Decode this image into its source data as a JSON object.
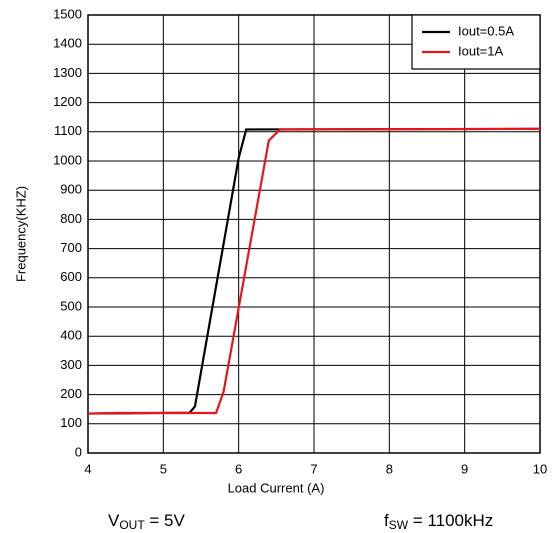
{
  "chart_data": {
    "type": "line",
    "xlabel": "Load Current (A)",
    "ylabel": "Frequency(KHZ)",
    "xlim": [
      4,
      10
    ],
    "xticks": [
      4,
      5,
      6,
      7,
      8,
      9,
      10
    ],
    "ylim": [
      0,
      1500
    ],
    "yticks": [
      0,
      100,
      200,
      300,
      400,
      500,
      600,
      700,
      800,
      900,
      1000,
      1100,
      1200,
      1300,
      1400,
      1500
    ],
    "grid": true,
    "legend": "upper right",
    "series": [
      {
        "name": "Iout=0.5A",
        "color": "#000000",
        "x": [
          4,
          5.35,
          5.42,
          6.0,
          6.1,
          10
        ],
        "values": [
          135,
          138,
          160,
          1010,
          1108,
          1110
        ]
      },
      {
        "name": "Iout=1A",
        "color": "#e8161b",
        "x": [
          4,
          4.4,
          5.7,
          5.8,
          6.4,
          6.55,
          10
        ],
        "values": [
          135,
          137,
          137,
          210,
          1070,
          1108,
          1110
        ]
      }
    ],
    "annotations": [
      {
        "main": "V",
        "sub": "OUT",
        "rest": " = 5V"
      },
      {
        "main": "f",
        "sub": "SW",
        "rest": " = 1100kHz"
      }
    ]
  }
}
